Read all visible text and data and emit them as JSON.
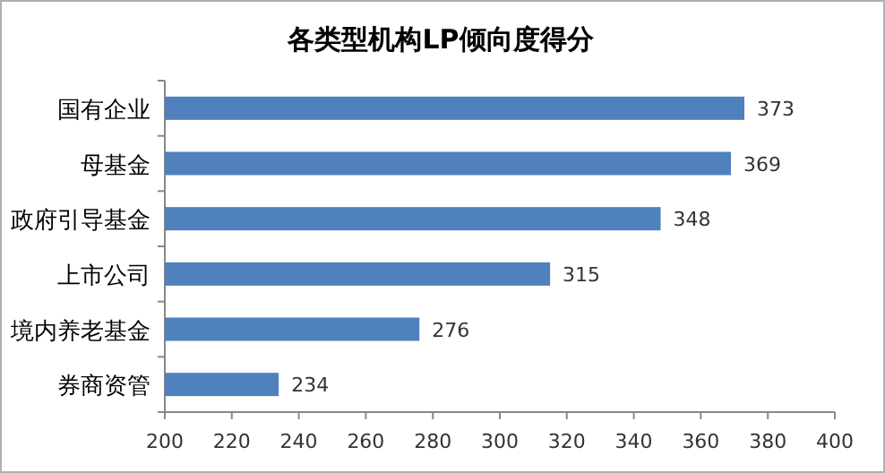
{
  "chart_data": {
    "type": "bar",
    "orientation": "horizontal",
    "title": "各类型机构LP倾向度得分",
    "categories": [
      "国有企业",
      "母基金",
      "政府引导基金",
      "上市公司",
      "境内养老基金",
      "券商资管"
    ],
    "values": [
      373,
      369,
      348,
      315,
      276,
      234
    ],
    "color": "#4f81bd",
    "xlim": [
      200,
      400
    ],
    "xticks": [
      200,
      220,
      240,
      260,
      280,
      300,
      320,
      340,
      360,
      380,
      400
    ],
    "data_labels": true,
    "grid": false
  }
}
